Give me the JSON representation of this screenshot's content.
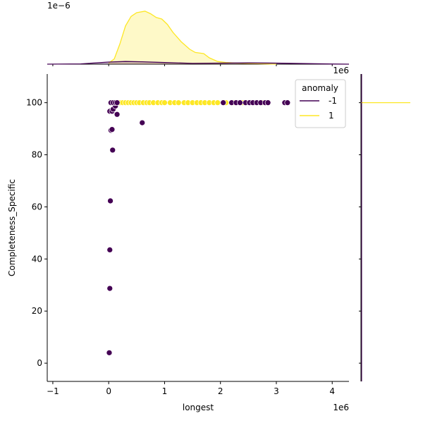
{
  "chart_data": {
    "type": "scatter",
    "title": "",
    "xlabel": "longest",
    "ylabel": "Completeness_Specific",
    "xlim": [
      -1.1,
      4.3
    ],
    "ylim": [
      -7,
      111
    ],
    "x_ticks": [
      -1,
      0,
      1,
      2,
      3,
      4
    ],
    "y_ticks": [
      0,
      20,
      40,
      60,
      80,
      100
    ],
    "x_offset_text": "1e6",
    "marginal_x_offset_text": "1e−6",
    "marginal_y_offset_text": "1e6",
    "legend": {
      "title": "anomaly",
      "placement": "top-right"
    },
    "series": [
      {
        "name": "-1",
        "color": "#440154",
        "points": [
          [
            0.01,
            4
          ],
          [
            0.02,
            28.7
          ],
          [
            0.02,
            43.5
          ],
          [
            0.03,
            62.3
          ],
          [
            0.07,
            81.8
          ],
          [
            0.04,
            89.4
          ],
          [
            0.06,
            89.7
          ],
          [
            0.6,
            92.3
          ],
          [
            0.15,
            95.5
          ],
          [
            0.02,
            96.7
          ],
          [
            0.06,
            96.7
          ],
          [
            0.08,
            97.5
          ],
          [
            0.12,
            98.7
          ],
          [
            0.04,
            100
          ],
          [
            0.08,
            100
          ],
          [
            0.12,
            100
          ],
          [
            0.15,
            100
          ],
          [
            2.05,
            100
          ],
          [
            2.2,
            100
          ],
          [
            2.28,
            100
          ],
          [
            2.35,
            100
          ],
          [
            2.45,
            100
          ],
          [
            2.52,
            100
          ],
          [
            2.58,
            100
          ],
          [
            2.65,
            100
          ],
          [
            2.72,
            100
          ],
          [
            2.8,
            100
          ],
          [
            2.85,
            100
          ],
          [
            3.15,
            100
          ],
          [
            3.2,
            100
          ]
        ]
      },
      {
        "name": "1",
        "color": "#fde725",
        "points": [
          [
            0.2,
            100
          ],
          [
            0.25,
            100
          ],
          [
            0.3,
            100
          ],
          [
            0.35,
            100
          ],
          [
            0.4,
            100
          ],
          [
            0.45,
            100
          ],
          [
            0.5,
            100
          ],
          [
            0.55,
            100
          ],
          [
            0.62,
            100
          ],
          [
            0.68,
            100
          ],
          [
            0.73,
            100
          ],
          [
            0.8,
            100
          ],
          [
            0.88,
            100
          ],
          [
            0.95,
            100
          ],
          [
            1.0,
            100
          ],
          [
            1.1,
            100
          ],
          [
            1.18,
            100
          ],
          [
            1.25,
            100
          ],
          [
            1.35,
            100
          ],
          [
            1.42,
            100
          ],
          [
            1.5,
            100
          ],
          [
            1.58,
            100
          ],
          [
            1.65,
            100
          ],
          [
            1.72,
            100
          ],
          [
            1.8,
            100
          ],
          [
            1.88,
            100
          ],
          [
            1.95,
            100
          ],
          [
            2.1,
            100
          ],
          [
            2.25,
            100
          ],
          [
            2.4,
            100
          ],
          [
            2.6,
            100
          ],
          [
            2.75,
            100
          ]
        ]
      }
    ],
    "marginal_x_density": {
      "xlim": [
        -1.1,
        4.3
      ],
      "ylim": [
        0,
        1.05
      ],
      "series": [
        {
          "name": "1",
          "color": "#fde725",
          "fill": "#fde725",
          "points": [
            [
              0.0,
              0.02
            ],
            [
              0.1,
              0.1
            ],
            [
              0.2,
              0.38
            ],
            [
              0.3,
              0.72
            ],
            [
              0.4,
              0.9
            ],
            [
              0.5,
              0.97
            ],
            [
              0.65,
              1.0
            ],
            [
              0.75,
              0.95
            ],
            [
              0.85,
              0.88
            ],
            [
              0.95,
              0.85
            ],
            [
              1.05,
              0.75
            ],
            [
              1.15,
              0.6
            ],
            [
              1.3,
              0.42
            ],
            [
              1.45,
              0.28
            ],
            [
              1.55,
              0.22
            ],
            [
              1.7,
              0.2
            ],
            [
              1.8,
              0.12
            ],
            [
              1.95,
              0.05
            ],
            [
              2.1,
              0.03
            ],
            [
              2.4,
              0.015
            ],
            [
              2.8,
              0.005
            ],
            [
              3.0,
              0.0
            ]
          ]
        },
        {
          "name": "-1",
          "color": "#440154",
          "fill": "#440154",
          "points": [
            [
              -1.1,
              0.0
            ],
            [
              -0.5,
              0.005
            ],
            [
              0.0,
              0.04
            ],
            [
              0.3,
              0.05
            ],
            [
              0.6,
              0.045
            ],
            [
              1.0,
              0.03
            ],
            [
              1.5,
              0.015
            ],
            [
              2.0,
              0.02
            ],
            [
              2.5,
              0.025
            ],
            [
              3.0,
              0.02
            ],
            [
              3.5,
              0.01
            ],
            [
              4.0,
              0.003
            ],
            [
              4.3,
              0.0
            ]
          ]
        }
      ]
    },
    "marginal_y_density": {
      "note_value": 100,
      "series": [
        {
          "name": "1",
          "color": "#fde725"
        },
        {
          "name": "-1",
          "color": "#440154"
        }
      ]
    }
  }
}
